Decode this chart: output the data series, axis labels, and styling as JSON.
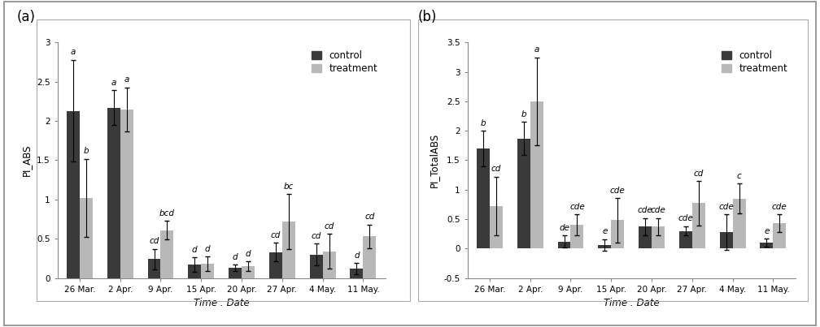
{
  "categories": [
    "26 Mar.",
    "2 Apr.",
    "9 Apr.",
    "15 Apr.",
    "20 Apr.",
    "27 Apr.",
    "4 May.",
    "11 May."
  ],
  "chart_a": {
    "ylabel": "PI_ABS",
    "ylim": [
      0,
      3.0
    ],
    "yticks": [
      0,
      0.5,
      1.0,
      1.5,
      2.0,
      2.5,
      3.0
    ],
    "ytick_labels": [
      "0",
      "0.5",
      "1",
      "1.5",
      "2",
      "2.5",
      "3"
    ],
    "control_values": [
      2.13,
      2.17,
      0.24,
      0.17,
      0.13,
      0.33,
      0.3,
      0.12
    ],
    "treatment_values": [
      1.02,
      2.15,
      0.61,
      0.18,
      0.15,
      0.72,
      0.34,
      0.53
    ],
    "control_errors": [
      0.65,
      0.22,
      0.13,
      0.09,
      0.04,
      0.12,
      0.14,
      0.07
    ],
    "treatment_errors": [
      0.5,
      0.28,
      0.12,
      0.09,
      0.06,
      0.35,
      0.22,
      0.15
    ],
    "control_labels": [
      "a",
      "a",
      "cd",
      "d",
      "d",
      "cd",
      "cd",
      "d"
    ],
    "treatment_labels": [
      "b",
      "a",
      "bcd",
      "d",
      "d",
      "bc",
      "cd",
      "cd"
    ]
  },
  "chart_b": {
    "ylabel": "PI_TotalABS",
    "ylim": [
      -0.5,
      3.5
    ],
    "yticks": [
      -0.5,
      0,
      0.5,
      1.0,
      1.5,
      2.0,
      2.5,
      3.0,
      3.5
    ],
    "ytick_labels": [
      "-0.5",
      "0",
      "0.5",
      "1",
      "1.5",
      "2",
      "2.5",
      "3",
      "3.5"
    ],
    "control_values": [
      1.7,
      1.87,
      0.12,
      0.06,
      0.37,
      0.3,
      0.28,
      0.1
    ],
    "treatment_values": [
      0.72,
      2.5,
      0.4,
      0.48,
      0.37,
      0.77,
      0.85,
      0.43
    ],
    "control_errors": [
      0.3,
      0.28,
      0.1,
      0.1,
      0.15,
      0.08,
      0.3,
      0.07
    ],
    "treatment_errors": [
      0.5,
      0.75,
      0.18,
      0.38,
      0.15,
      0.38,
      0.25,
      0.15
    ],
    "control_labels": [
      "b",
      "b",
      "de",
      "e",
      "cde",
      "cde",
      "cde",
      "e"
    ],
    "treatment_labels": [
      "cd",
      "a",
      "cde",
      "cde",
      "cde",
      "cd",
      "c",
      "cde"
    ]
  },
  "control_color": "#3a3a3a",
  "treatment_color": "#b8b8b8",
  "bar_width": 0.32,
  "xlabel": "Time : Date",
  "legend_labels": [
    "control",
    "treatment"
  ],
  "label_fontsize": 8.5,
  "tick_fontsize": 7.5,
  "annot_fontsize": 7.5,
  "panel_label_a": "(a)",
  "panel_label_b": "(b)"
}
